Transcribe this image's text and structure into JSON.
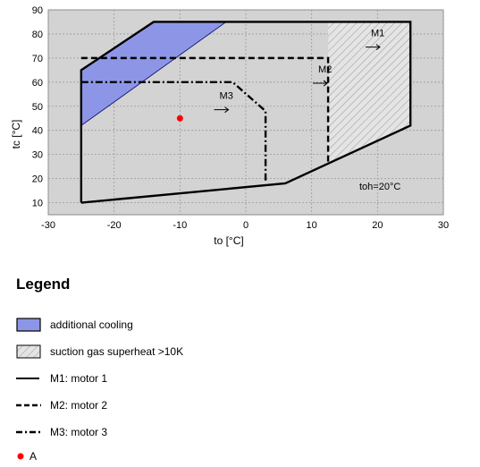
{
  "chart_data": {
    "type": "area",
    "title": "",
    "xlabel": "to [°C]",
    "ylabel": "tc [°C]",
    "xlim": [
      -30,
      30
    ],
    "ylim": [
      5,
      90
    ],
    "xticks": [
      -30,
      -20,
      -10,
      0,
      10,
      20,
      30
    ],
    "yticks": [
      10,
      20,
      30,
      40,
      50,
      60,
      70,
      80,
      90
    ],
    "grid": true,
    "annotation": "toh=20°C",
    "envelopes": [
      {
        "name": "M1",
        "line_style": "solid",
        "points": [
          [
            -25,
            10
          ],
          [
            6,
            18
          ],
          [
            25,
            42
          ],
          [
            25,
            85
          ],
          [
            -14,
            85
          ],
          [
            -25,
            65
          ],
          [
            -25,
            10
          ]
        ]
      },
      {
        "name": "M2",
        "line_style": "dashed",
        "points": [
          [
            -25,
            70
          ],
          [
            12.5,
            70
          ],
          [
            12.5,
            27
          ]
        ]
      },
      {
        "name": "M3",
        "line_style": "dashdot",
        "points": [
          [
            -25,
            60
          ],
          [
            -2,
            60
          ],
          [
            3,
            48
          ],
          [
            3,
            19
          ]
        ]
      }
    ],
    "regions": [
      {
        "name": "additional cooling",
        "color": "#8d96e6",
        "points": [
          [
            -25,
            65
          ],
          [
            -14,
            85
          ],
          [
            -3,
            85
          ],
          [
            -25,
            42
          ]
        ]
      },
      {
        "name": "suction gas superheat >10K",
        "color": "#d6d6d6",
        "points": [
          [
            12.5,
            85
          ],
          [
            25,
            85
          ],
          [
            25,
            42
          ],
          [
            12.5,
            27
          ]
        ]
      }
    ],
    "series_labels": [
      {
        "name": "M1",
        "x": 19,
        "y": 79
      },
      {
        "name": "M2",
        "x": 11,
        "y": 64
      },
      {
        "name": "M3",
        "x": -4,
        "y": 53
      }
    ],
    "points": [
      {
        "name": "A",
        "x": -10,
        "y": 45,
        "color": "#ff0000"
      }
    ]
  },
  "legend": {
    "title": "Legend",
    "items": [
      {
        "kind": "fill-blue",
        "label": "additional cooling"
      },
      {
        "kind": "fill-hatch",
        "label": "suction gas superheat >10K"
      },
      {
        "kind": "line-solid",
        "label": "M1: motor 1"
      },
      {
        "kind": "line-dashed",
        "label": "M2: motor 2"
      },
      {
        "kind": "line-dashdot",
        "label": "M3: motor 3"
      },
      {
        "kind": "dot-red",
        "label": "A"
      }
    ]
  }
}
